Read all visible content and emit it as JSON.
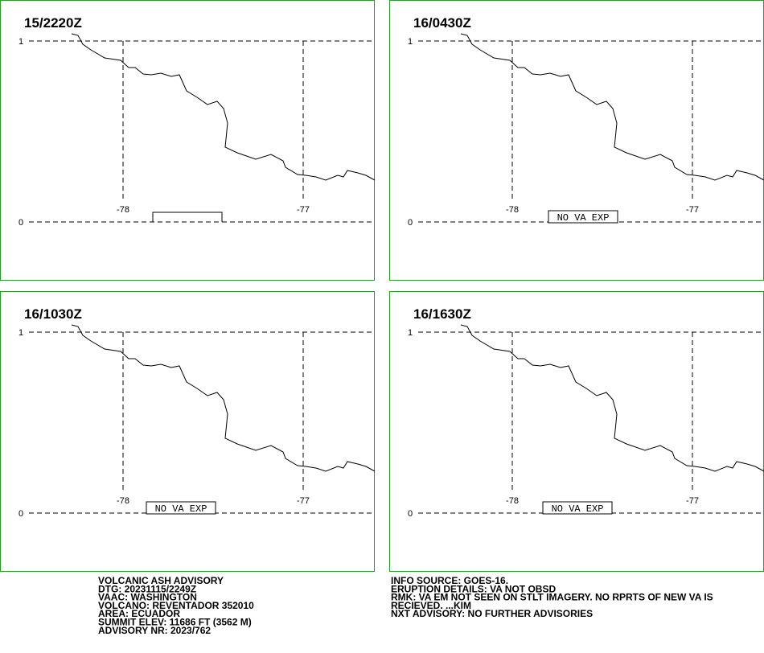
{
  "panels": [
    {
      "time": "15/2220Z"
    },
    {
      "time": "16/0430Z",
      "note": "NO VA EXP"
    },
    {
      "time": "16/1030Z",
      "note": "NO VA EXP"
    },
    {
      "time": "16/1630Z",
      "note": "NO VA EXP"
    }
  ],
  "grid_labels": {
    "lat": [
      "1",
      "0"
    ],
    "lon": [
      "-78",
      "-77"
    ]
  },
  "advisory": {
    "left": [
      "VOLCANIC ASH ADVISORY",
      "DTG: 20231115/2249Z",
      "VAAC: WASHINGTON",
      "VOLCANO: REVENTADOR 352010",
      "AREA: ECUADOR",
      "SUMMIT ELEV: 11686 FT (3562 M)",
      "ADVISORY NR: 2023/762"
    ],
    "right": [
      "INFO SOURCE: GOES-16.",
      "ERUPTION DETAILS: VA NOT OBSD",
      "RMK: VA EM NOT SEEN ON STLT IMAGERY. NO RPRTS OF NEW VA IS",
      "RECIEVED. ...KIM",
      "NXT ADVISORY: NO FURTHER ADVISORIES"
    ]
  }
}
